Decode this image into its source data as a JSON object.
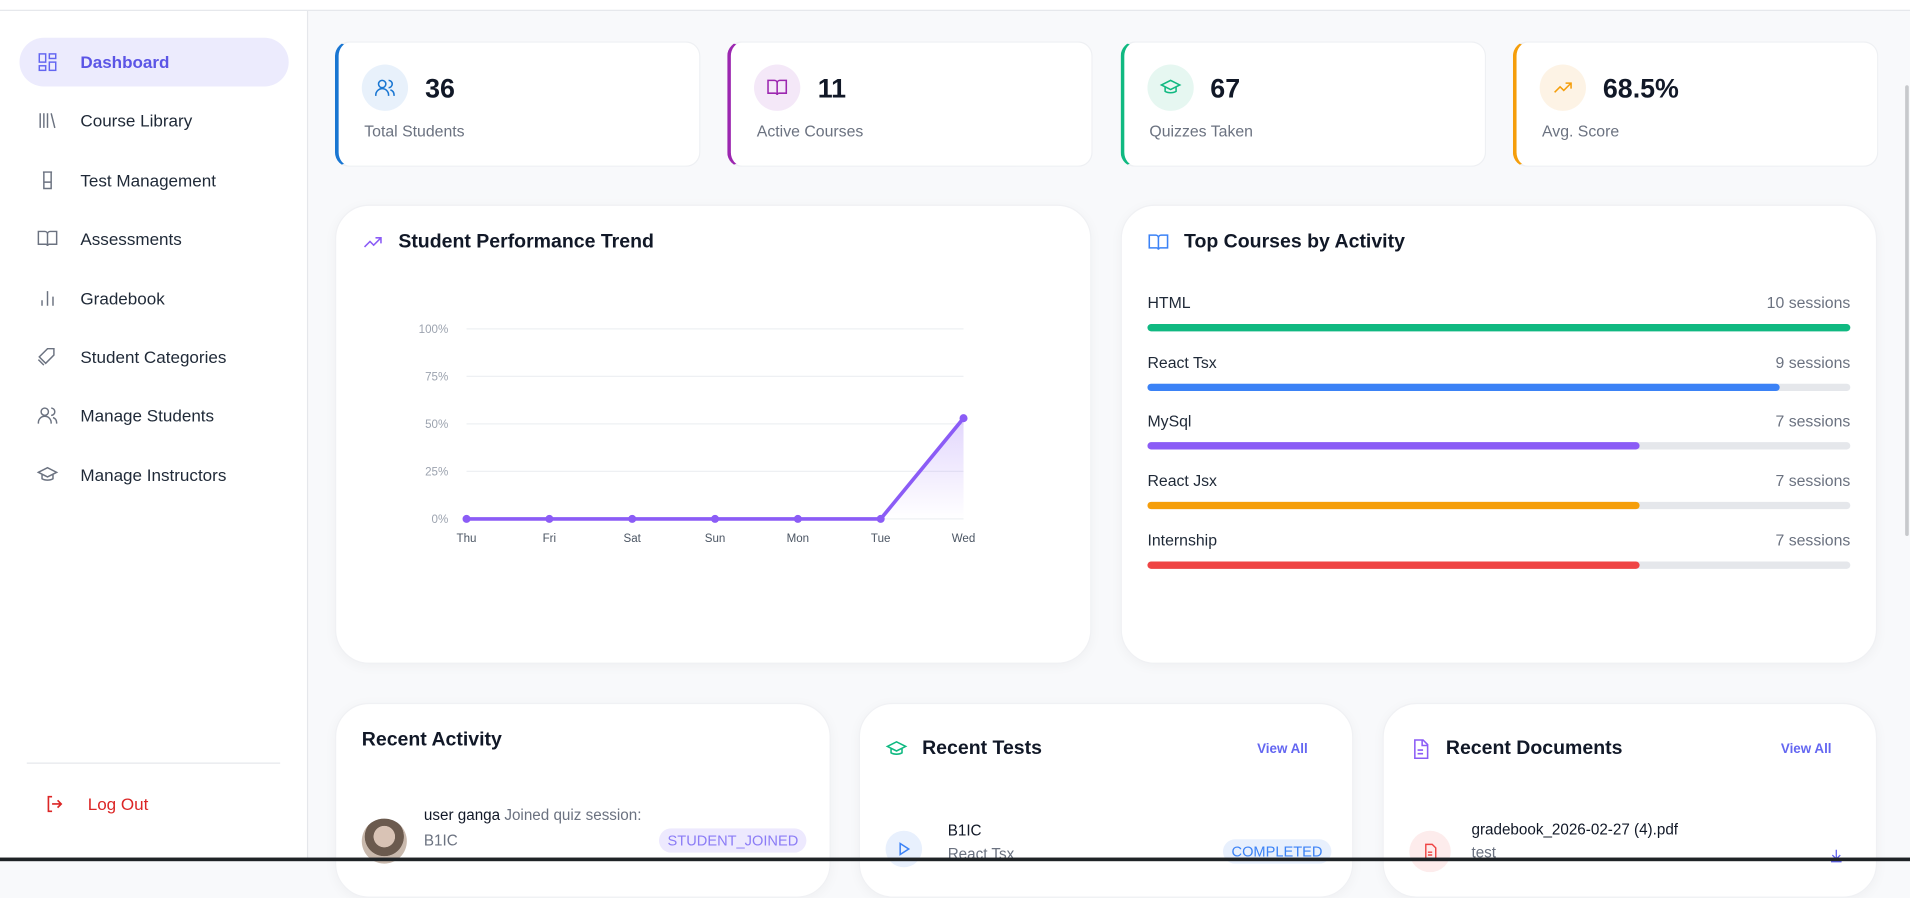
{
  "sidebar": {
    "items": [
      {
        "label": "Dashboard",
        "icon": "dashboard-grid-icon",
        "active": true
      },
      {
        "label": "Course Library",
        "icon": "library-icon"
      },
      {
        "label": "Test Management",
        "icon": "beaker-icon"
      },
      {
        "label": "Assessments",
        "icon": "book-open-icon"
      },
      {
        "label": "Gradebook",
        "icon": "bar-chart-icon"
      },
      {
        "label": "Student Categories",
        "icon": "tag-icon"
      },
      {
        "label": "Manage Students",
        "icon": "users-icon"
      },
      {
        "label": "Manage Instructors",
        "icon": "graduation-cap-icon"
      }
    ],
    "logout": "Log Out"
  },
  "stats": [
    {
      "value": "36",
      "label": "Total Students",
      "color": "#1976d2",
      "bg": "#e8f1fb",
      "icon": "users-icon"
    },
    {
      "value": "11",
      "label": "Active Courses",
      "color": "#9c27b0",
      "bg": "#f4e8f8",
      "icon": "book-open-icon"
    },
    {
      "value": "67",
      "label": "Quizzes Taken",
      "color": "#10b981",
      "bg": "#e6f7f1",
      "icon": "graduation-cap-icon"
    },
    {
      "value": "68.5%",
      "label": "Avg. Score",
      "color": "#f59e0b",
      "bg": "#fdf3e5",
      "icon": "trending-up-icon"
    }
  ],
  "performance": {
    "title": "Student Performance Trend"
  },
  "chart_data": {
    "type": "line",
    "title": "Student Performance Trend",
    "categories": [
      "Thu",
      "Fri",
      "Sat",
      "Sun",
      "Mon",
      "Tue",
      "Wed"
    ],
    "values": [
      0,
      0,
      0,
      0,
      0,
      0,
      53
    ],
    "ylim": [
      0,
      100
    ],
    "yticks": [
      "0%",
      "25%",
      "50%",
      "75%",
      "100%"
    ],
    "grid": true,
    "color": "#8b5cf6"
  },
  "top_courses": {
    "title": "Top Courses by Activity",
    "max": 10,
    "items": [
      {
        "name": "HTML",
        "sessions": 10,
        "label": "10 sessions",
        "color": "#10b981"
      },
      {
        "name": "React Tsx",
        "sessions": 9,
        "label": "9 sessions",
        "color": "#3b82f6"
      },
      {
        "name": "MySql",
        "sessions": 7,
        "label": "7 sessions",
        "color": "#8b5cf6"
      },
      {
        "name": "React Jsx",
        "sessions": 7,
        "label": "7 sessions",
        "color": "#f59e0b"
      },
      {
        "name": "Internship",
        "sessions": 7,
        "label": "7 sessions",
        "color": "#ef4444"
      }
    ]
  },
  "recent_activity": {
    "title": "Recent Activity",
    "items": [
      {
        "user": "user ganga",
        "action": "Joined quiz session:",
        "target": "B1IC",
        "badge": "STUDENT_JOINED"
      }
    ]
  },
  "recent_tests": {
    "title": "Recent Tests",
    "view_all": "View All",
    "items": [
      {
        "name": "B1IC",
        "course": "React Tsx",
        "status": "COMPLETED"
      }
    ]
  },
  "recent_documents": {
    "title": "Recent Documents",
    "view_all": "View All",
    "items": [
      {
        "name": "gradebook_2026-02-27 (4).pdf",
        "subtitle": "test"
      }
    ]
  }
}
